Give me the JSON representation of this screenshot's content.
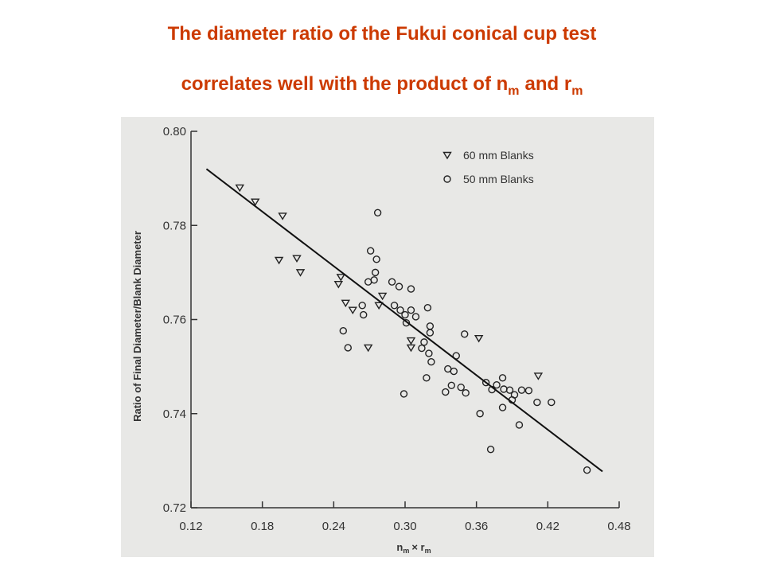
{
  "chart_data": {
    "type": "scatter",
    "title": {
      "line1": "The diameter ratio of the Fukui conical cup test",
      "line2": [
        "correlates well with the product of n",
        "m",
        "and r",
        "m"
      ]
    },
    "x_label": [
      "n",
      "m",
      "× r",
      "m"
    ],
    "y_label": "Ratio of Final Diameter/Blank Diameter",
    "xlim": [
      0.12,
      0.48
    ],
    "xticks": [
      0.12,
      0.18,
      0.24,
      {
        "value": 0.3,
        "label": "0.30"
      },
      0.36,
      0.42,
      0.48
    ],
    "ylim": [
      0.72,
      0.8
    ],
    "yticks": [
      0.72,
      0.74,
      0.76,
      0.78,
      {
        "value": 0.8,
        "label": "0.80"
      }
    ],
    "legend": "upper right",
    "series": [
      {
        "name": "60 mm Blanks",
        "marker": "triangle-down",
        "color": "#222222",
        "x": [
          0.161,
          0.174,
          0.197,
          0.194,
          0.209,
          0.212,
          0.244,
          0.246,
          0.25,
          0.256,
          0.269,
          0.281,
          0.278,
          0.305,
          0.305,
          0.362,
          0.412
        ],
        "values": [
          0.788,
          0.785,
          0.782,
          0.7726,
          0.773,
          0.77,
          0.7675,
          0.769,
          0.7635,
          0.762,
          0.754,
          0.765,
          0.763,
          0.7555,
          0.754,
          0.756,
          0.748
        ]
      },
      {
        "name": "50 mm Blanks",
        "marker": "circle",
        "color": "#222222",
        "x": [
          0.277,
          0.271,
          0.276,
          0.275,
          0.274,
          0.269,
          0.264,
          0.265,
          0.248,
          0.252,
          0.289,
          0.295,
          0.305,
          0.291,
          0.296,
          0.3,
          0.305,
          0.309,
          0.301,
          0.319,
          0.321,
          0.321,
          0.316,
          0.314,
          0.32,
          0.322,
          0.318,
          0.299,
          0.343,
          0.35,
          0.336,
          0.341,
          0.339,
          0.347,
          0.351,
          0.334,
          0.368,
          0.373,
          0.377,
          0.382,
          0.383,
          0.388,
          0.392,
          0.398,
          0.404,
          0.39,
          0.382,
          0.363,
          0.372,
          0.396,
          0.411,
          0.423,
          0.453
        ],
        "values": [
          0.7827,
          0.7746,
          0.7728,
          0.77,
          0.7684,
          0.768,
          0.763,
          0.761,
          0.7576,
          0.754,
          0.768,
          0.767,
          0.7665,
          0.763,
          0.762,
          0.761,
          0.762,
          0.7606,
          0.7593,
          0.7625,
          0.7586,
          0.7572,
          0.7552,
          0.7539,
          0.7528,
          0.751,
          0.7476,
          0.7442,
          0.7523,
          0.7569,
          0.7495,
          0.749,
          0.746,
          0.7456,
          0.7444,
          0.7446,
          0.7466,
          0.7451,
          0.7461,
          0.7476,
          0.7452,
          0.745,
          0.744,
          0.745,
          0.7449,
          0.7429,
          0.7413,
          0.74,
          0.7324,
          0.7376,
          0.7424,
          0.7424,
          0.728
        ]
      }
    ],
    "fit_line": {
      "color": "#111111",
      "x": [
        0.133,
        0.466
      ],
      "values": [
        0.792,
        0.7277
      ]
    }
  }
}
